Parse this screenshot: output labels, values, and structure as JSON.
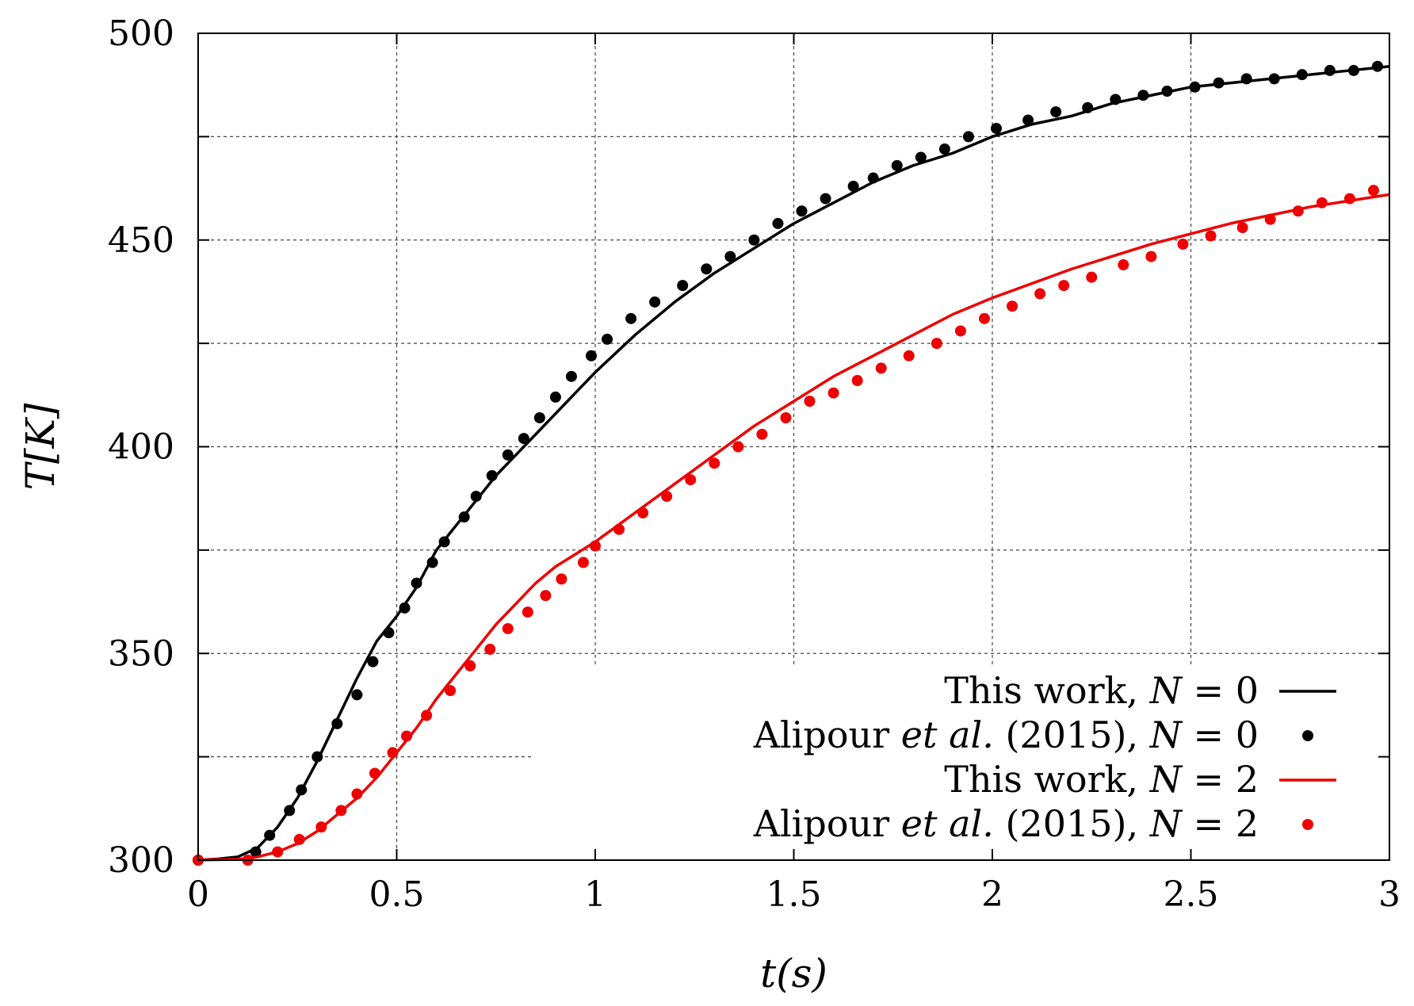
{
  "chart_data": {
    "type": "line",
    "title": "",
    "xlabel": "t(s)",
    "ylabel": "T[K]",
    "xlim": [
      0,
      3
    ],
    "ylim": [
      300,
      500
    ],
    "x_ticks": [
      "0",
      "0.5",
      "1",
      "1.5",
      "2",
      "2.5",
      "3"
    ],
    "x_tick_values": [
      0,
      0.5,
      1,
      1.5,
      2,
      2.5,
      3
    ],
    "y_ticks": [
      "300",
      "350",
      "400",
      "450",
      "500"
    ],
    "y_tick_values": [
      300,
      350,
      400,
      450,
      500
    ],
    "y_minor_grid": [
      325,
      375,
      425,
      475
    ],
    "grid": true,
    "legend_position": "bottom-right",
    "series": [
      {
        "name": "This work, N = 0",
        "legend_parts": [
          "This work, ",
          "N",
          " = 0"
        ],
        "style": "line",
        "color": "#000000",
        "x": [
          0,
          0.05,
          0.1,
          0.15,
          0.2,
          0.25,
          0.3,
          0.35,
          0.4,
          0.45,
          0.5,
          0.55,
          0.6,
          0.65,
          0.7,
          0.75,
          0.8,
          0.85,
          0.9,
          0.95,
          1.0,
          1.1,
          1.2,
          1.3,
          1.4,
          1.5,
          1.6,
          1.7,
          1.8,
          1.9,
          2.0,
          2.1,
          2.2,
          2.3,
          2.4,
          2.5,
          2.6,
          2.7,
          2.8,
          2.9,
          3.0
        ],
        "values": [
          300,
          300.3,
          300.8,
          303,
          308,
          315,
          324,
          334,
          344,
          353,
          359,
          366,
          375,
          381,
          387,
          393,
          398,
          403,
          408,
          413,
          418,
          427,
          435,
          442,
          448,
          454,
          459,
          464,
          468,
          471,
          475,
          478,
          480,
          483,
          485,
          487,
          488,
          489,
          490,
          491,
          492
        ]
      },
      {
        "name": "Alipour et al. (2015), N = 0",
        "legend_parts": [
          "Alipour ",
          "et al.",
          " (2015), ",
          "N",
          " = 0"
        ],
        "style": "points",
        "color": "#000000",
        "x": [
          0,
          0.145,
          0.18,
          0.23,
          0.26,
          0.3,
          0.35,
          0.4,
          0.44,
          0.48,
          0.52,
          0.55,
          0.59,
          0.62,
          0.67,
          0.7,
          0.74,
          0.78,
          0.82,
          0.86,
          0.9,
          0.94,
          0.99,
          1.03,
          1.09,
          1.15,
          1.22,
          1.28,
          1.34,
          1.4,
          1.46,
          1.52,
          1.58,
          1.65,
          1.7,
          1.76,
          1.82,
          1.88,
          1.94,
          2.01,
          2.09,
          2.16,
          2.24,
          2.31,
          2.38,
          2.44,
          2.51,
          2.57,
          2.64,
          2.71,
          2.78,
          2.85,
          2.91,
          2.97
        ],
        "values": [
          300,
          302,
          306,
          312,
          317,
          325,
          333,
          340,
          348,
          355,
          361,
          367,
          372,
          377,
          383,
          388,
          393,
          398,
          402,
          407,
          412,
          417,
          422,
          426,
          431,
          435,
          439,
          443,
          446,
          450,
          454,
          457,
          460,
          463,
          465,
          468,
          470,
          472,
          475,
          477,
          479,
          481,
          482,
          484,
          485,
          486,
          487,
          488,
          489,
          489,
          490,
          491,
          491,
          492
        ]
      },
      {
        "name": "This work, N = 2",
        "legend_parts": [
          "This work, ",
          "N",
          " = 2"
        ],
        "style": "line",
        "color": "#ee0000",
        "x": [
          0,
          0.1,
          0.15,
          0.2,
          0.25,
          0.3,
          0.35,
          0.4,
          0.45,
          0.5,
          0.55,
          0.6,
          0.65,
          0.7,
          0.75,
          0.8,
          0.85,
          0.9,
          0.95,
          1.0,
          1.1,
          1.2,
          1.3,
          1.4,
          1.5,
          1.6,
          1.7,
          1.8,
          1.9,
          2.0,
          2.2,
          2.4,
          2.6,
          2.8,
          3.0
        ],
        "values": [
          300,
          300.2,
          300.8,
          302,
          304,
          307,
          311,
          315,
          320,
          326,
          332,
          339,
          345,
          351,
          357,
          362,
          367,
          371,
          374,
          377,
          384,
          391,
          398,
          405,
          411,
          417,
          422,
          427,
          432,
          436,
          443,
          449,
          454,
          458,
          461
        ]
      },
      {
        "name": "Alipour et al. (2015), N = 2",
        "legend_parts": [
          "Alipour ",
          "et al.",
          " (2015), ",
          "N",
          " = 2"
        ],
        "style": "points",
        "color": "#ee0000",
        "x": [
          0,
          0.125,
          0.2,
          0.255,
          0.31,
          0.36,
          0.4,
          0.445,
          0.49,
          0.525,
          0.575,
          0.635,
          0.685,
          0.735,
          0.78,
          0.83,
          0.875,
          0.915,
          0.97,
          1.0,
          1.06,
          1.12,
          1.18,
          1.24,
          1.3,
          1.36,
          1.42,
          1.48,
          1.54,
          1.6,
          1.66,
          1.72,
          1.79,
          1.86,
          1.92,
          1.98,
          2.05,
          2.12,
          2.18,
          2.25,
          2.33,
          2.4,
          2.48,
          2.55,
          2.63,
          2.7,
          2.77,
          2.83,
          2.9,
          2.96
        ],
        "values": [
          300,
          300,
          302,
          305,
          308,
          312,
          316,
          321,
          326,
          330,
          335,
          341,
          347,
          351,
          356,
          360,
          364,
          368,
          372,
          376,
          380,
          384,
          388,
          392,
          396,
          400,
          403,
          407,
          411,
          413,
          416,
          419,
          422,
          425,
          428,
          431,
          434,
          437,
          439,
          441,
          444,
          446,
          449,
          451,
          453,
          455,
          457,
          459,
          460,
          462
        ]
      }
    ]
  }
}
